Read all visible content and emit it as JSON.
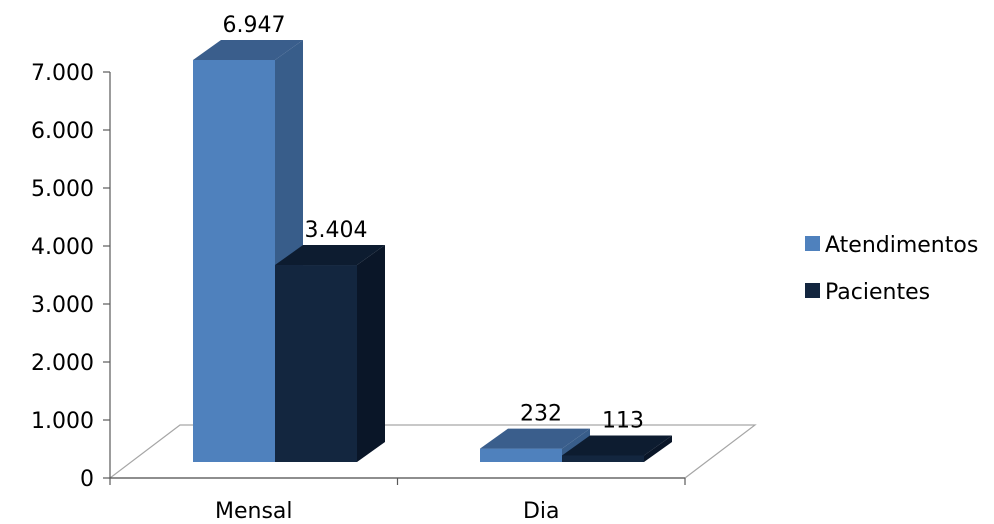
{
  "chart_data": {
    "type": "bar",
    "categories": [
      "Mensal",
      "Dia"
    ],
    "series": [
      {
        "name": "Atendimentos",
        "values": [
          6947,
          232
        ],
        "data_labels": [
          "6.947",
          "232"
        ],
        "color": "#4F81BD",
        "top_color": "#3A5E8C",
        "side_color": "#385D8A"
      },
      {
        "name": "Pacientes",
        "values": [
          3404,
          113
        ],
        "data_labels": [
          "3.404",
          "113"
        ],
        "color": "#13263F",
        "top_color": "#0D1C30",
        "side_color": "#0A1628"
      }
    ],
    "y_ticks": [
      0,
      1000,
      2000,
      3000,
      4000,
      5000,
      6000,
      7000
    ],
    "y_tick_labels": [
      "0",
      "1.000",
      "2.000",
      "3.000",
      "4.000",
      "5.000",
      "6.000",
      "7.000"
    ],
    "ylim": [
      0,
      7000
    ],
    "grid": false,
    "legend_position": "right",
    "style": "3d-column"
  }
}
